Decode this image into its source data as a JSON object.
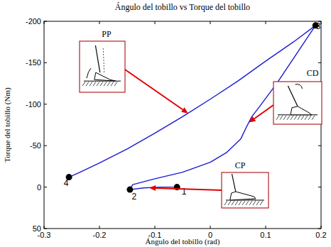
{
  "chart_data": {
    "type": "line",
    "title": "Ángulo del tobillo vs Torque del tobillo",
    "x_label": "Ángulo del tobillo (rad)",
    "y_label": "Torque del tobillo (Nm)",
    "x": [
      -0.06,
      -0.09,
      -0.12,
      -0.145,
      -0.14,
      -0.1,
      -0.05,
      0,
      0.03,
      0.055,
      0.065,
      0.075,
      0.09,
      0.12,
      0.15,
      0.175,
      0.19,
      0.15,
      0.1,
      0.05,
      0,
      -0.05,
      -0.1,
      -0.15,
      -0.2,
      -0.235,
      -0.255
    ],
    "series": [
      {
        "color": "#1a1ad0",
        "values": [
          0,
          0,
          1,
          3,
          -3,
          -10,
          -18,
          -30,
          -42,
          -58,
          -72,
          -85,
          -98,
          -125,
          -155,
          -180,
          -195,
          -175,
          -152,
          -128,
          -106,
          -85,
          -65,
          -46,
          -29,
          -18,
          -12
        ]
      }
    ],
    "xlim": [
      -0.3,
      0.2
    ],
    "xticks": [
      -0.3,
      -0.2,
      -0.1,
      0,
      0.1,
      0.2
    ],
    "ylim": [
      50,
      -200
    ],
    "yticks": [
      -200,
      -150,
      -100,
      -50,
      0,
      50
    ],
    "annotations": [
      {
        "text": "1",
        "x": -0.06,
        "y": 0,
        "marker": "circle"
      },
      {
        "text": "2",
        "x": -0.145,
        "y": 3,
        "marker": "circle"
      },
      {
        "text": "3",
        "x": 0.19,
        "y": -195,
        "marker": "circle"
      },
      {
        "text": "4",
        "x": -0.255,
        "y": -12,
        "marker": "circle"
      },
      {
        "text": "PP",
        "x": -0.04,
        "y": -89
      },
      {
        "text": "CD",
        "x": 0.07,
        "y": -78
      },
      {
        "text": "CP",
        "x": -0.11,
        "y": 1
      }
    ]
  }
}
